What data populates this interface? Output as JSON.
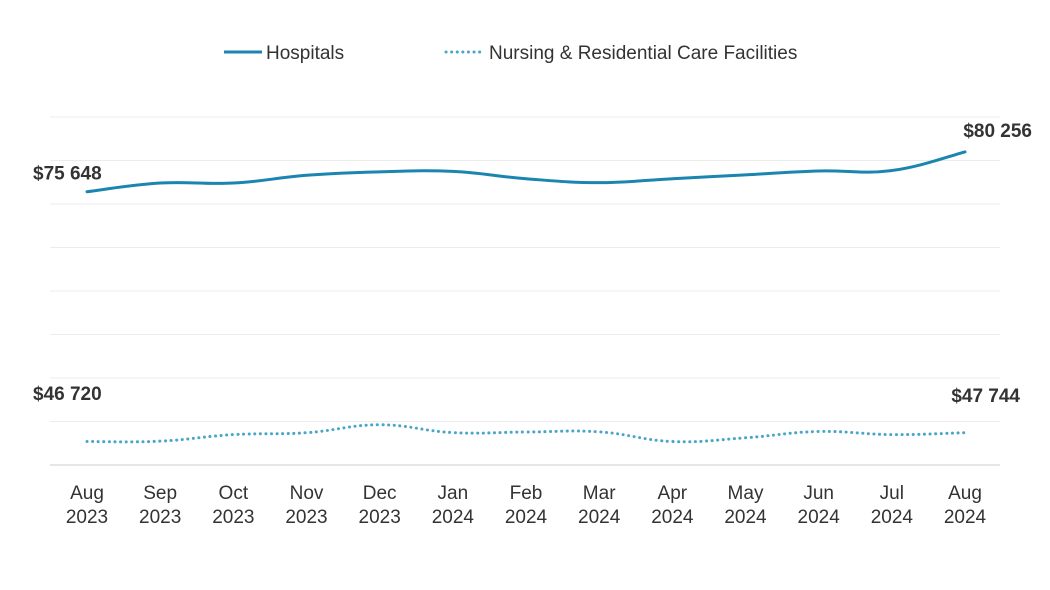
{
  "chart_data": {
    "type": "line",
    "categories": [
      "Aug 2023",
      "Sep 2023",
      "Oct 2023",
      "Nov 2023",
      "Dec 2023",
      "Jan 2024",
      "Feb 2024",
      "Mar 2024",
      "Apr 2024",
      "May 2024",
      "Jun 2024",
      "Jul 2024",
      "Aug 2024"
    ],
    "tick_labels": [
      [
        "Aug",
        "2023"
      ],
      [
        "Sep",
        "2023"
      ],
      [
        "Oct",
        "2023"
      ],
      [
        "Nov",
        "2023"
      ],
      [
        "Dec",
        "2023"
      ],
      [
        "Jan",
        "2024"
      ],
      [
        "Feb",
        "2024"
      ],
      [
        "Mar",
        "2024"
      ],
      [
        "Apr",
        "2024"
      ],
      [
        "May",
        "2024"
      ],
      [
        "Jun",
        "2024"
      ],
      [
        "Jul",
        "2024"
      ],
      [
        "Aug",
        "2024"
      ]
    ],
    "series": [
      {
        "name": "Hospitals",
        "color": "#1a86b0",
        "style": "solid",
        "values": [
          75648,
          76650,
          76650,
          77550,
          77950,
          78000,
          77150,
          76700,
          77150,
          77600,
          78050,
          78100,
          80256
        ],
        "start_label": "$75 648",
        "end_label": "$80 256"
      },
      {
        "name": "Nursing & Residential Care Facilities",
        "color": "#4aa6c8",
        "style": "dotted",
        "values": [
          46720,
          46760,
          47520,
          47740,
          48660,
          47750,
          47820,
          47840,
          46720,
          47150,
          47880,
          47520,
          47744
        ],
        "start_label": "$46 720",
        "end_label": "$47 744"
      }
    ],
    "ylim": [
      44000,
      84300
    ],
    "grid": true,
    "legend": "top-center"
  }
}
